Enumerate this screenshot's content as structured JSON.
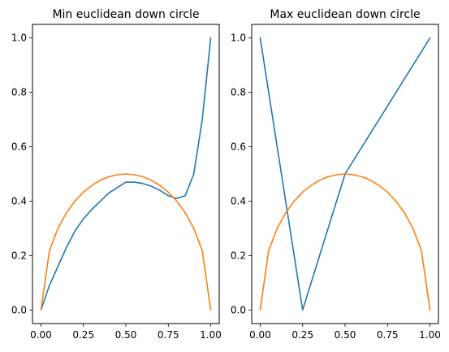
{
  "chart_data": [
    {
      "type": "line",
      "title": "Min euclidean down circle",
      "xlabel": "",
      "ylabel": "",
      "xlim": [
        -0.05,
        1.05
      ],
      "ylim": [
        -0.05,
        1.05
      ],
      "xticks": [
        0.0,
        0.25,
        0.5,
        0.75,
        1.0
      ],
      "xtick_labels": [
        "0.00",
        "0.25",
        "0.50",
        "0.75",
        "1.00"
      ],
      "yticks": [
        0.0,
        0.2,
        0.4,
        0.6,
        0.8,
        1.0
      ],
      "ytick_labels": [
        "0.0",
        "0.2",
        "0.4",
        "0.6",
        "0.8",
        "1.0"
      ],
      "grid": false,
      "series": [
        {
          "color": "#1f77b4",
          "x": [
            0.0,
            0.05,
            0.1,
            0.15,
            0.2,
            0.25,
            0.3,
            0.35,
            0.4,
            0.45,
            0.5,
            0.55,
            0.6,
            0.65,
            0.7,
            0.75,
            0.8,
            0.85,
            0.9,
            0.95,
            1.0
          ],
          "y": [
            0.0,
            0.09,
            0.16,
            0.23,
            0.29,
            0.335,
            0.37,
            0.4,
            0.43,
            0.45,
            0.47,
            0.47,
            0.465,
            0.455,
            0.44,
            0.42,
            0.41,
            0.42,
            0.5,
            0.7,
            1.0
          ]
        },
        {
          "color": "#ff7f0e",
          "x": [
            0.0,
            0.05,
            0.1,
            0.15,
            0.2,
            0.25,
            0.3,
            0.35,
            0.4,
            0.45,
            0.5,
            0.55,
            0.6,
            0.65,
            0.7,
            0.75,
            0.8,
            0.85,
            0.9,
            0.95,
            1.0
          ],
          "y": [
            0.0,
            0.218,
            0.3,
            0.357,
            0.4,
            0.433,
            0.458,
            0.477,
            0.49,
            0.497,
            0.5,
            0.497,
            0.49,
            0.477,
            0.458,
            0.433,
            0.4,
            0.357,
            0.3,
            0.218,
            0.0
          ]
        }
      ]
    },
    {
      "type": "line",
      "title": "Max euclidean down circle",
      "xlabel": "",
      "ylabel": "",
      "xlim": [
        -0.05,
        1.05
      ],
      "ylim": [
        -0.05,
        1.05
      ],
      "xticks": [
        0.0,
        0.25,
        0.5,
        0.75,
        1.0
      ],
      "xtick_labels": [
        "0.00",
        "0.25",
        "0.50",
        "0.75",
        "1.00"
      ],
      "yticks": [
        0.0,
        0.2,
        0.4,
        0.6,
        0.8,
        1.0
      ],
      "ytick_labels": [
        "0.0",
        "0.2",
        "0.4",
        "0.6",
        "0.8",
        "1.0"
      ],
      "grid": false,
      "series": [
        {
          "color": "#1f77b4",
          "x": [
            0.0,
            0.25,
            0.5,
            1.0
          ],
          "y": [
            1.0,
            0.0,
            0.5,
            1.0
          ]
        },
        {
          "color": "#ff7f0e",
          "x": [
            0.0,
            0.05,
            0.1,
            0.15,
            0.2,
            0.25,
            0.3,
            0.35,
            0.4,
            0.45,
            0.5,
            0.55,
            0.6,
            0.65,
            0.7,
            0.75,
            0.8,
            0.85,
            0.9,
            0.95,
            1.0
          ],
          "y": [
            0.0,
            0.218,
            0.3,
            0.357,
            0.4,
            0.433,
            0.458,
            0.477,
            0.49,
            0.497,
            0.5,
            0.497,
            0.49,
            0.477,
            0.458,
            0.433,
            0.4,
            0.357,
            0.3,
            0.218,
            0.0
          ]
        }
      ]
    }
  ]
}
